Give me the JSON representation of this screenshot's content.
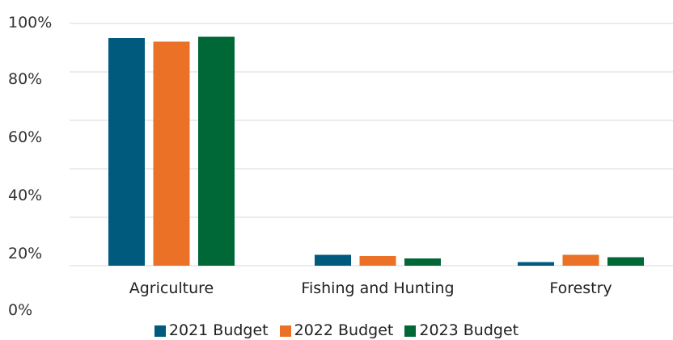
{
  "chart_data": {
    "type": "bar",
    "categories": [
      "Agriculture",
      "Fishing and Hunting",
      "Forestry"
    ],
    "series": [
      {
        "name": "2021 Budget",
        "color": "#005A7E",
        "values": [
          94,
          4.5,
          1.5
        ]
      },
      {
        "name": "2022 Budget",
        "color": "#EA7125",
        "values": [
          92.5,
          4,
          4.5
        ]
      },
      {
        "name": "2023 Budget",
        "color": "#006837",
        "values": [
          94.5,
          3,
          3.5
        ]
      }
    ],
    "y_tick_labels": [
      "100%",
      "80%",
      "60%",
      "40%",
      "20%",
      "0%"
    ],
    "ylim": [
      0,
      100
    ],
    "grid": true,
    "legend": "bottom"
  }
}
